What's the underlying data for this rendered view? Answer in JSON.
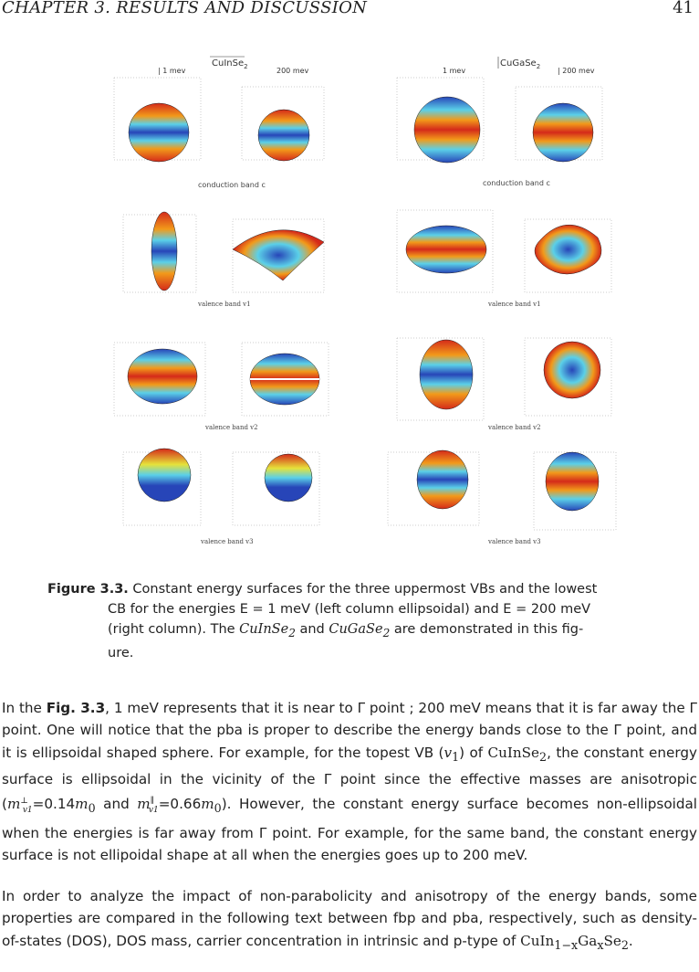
{
  "header": {
    "chapter": "CHAPTER 3.  RESULTS AND DISCUSSION",
    "page_number": "41"
  },
  "figure": {
    "left_title": "CuInSe",
    "left_title_sub": "2",
    "right_title": "CuGaSe",
    "right_title_sub": "2",
    "energy_low": "1 mev",
    "energy_high": "200 mev",
    "row_labels": [
      "conduction band c",
      "valence band v1",
      "valence band v2",
      "valence band v3"
    ],
    "colors": {
      "red": "#d42a1a",
      "orange": "#f29a1a",
      "yellow": "#e6e23a",
      "cyan": "#5bd0e8",
      "blue": "#2745b8"
    }
  },
  "caption": {
    "label": "Figure 3.3.",
    "line1": " Constant energy surfaces for the three uppermost VBs and the lowest",
    "line2": "CB for the energies E = 1 meV (left column ellipsoidal) and E = 200 meV",
    "line3a": "(right column). The ",
    "m1": "CuInSe",
    "m1sub": "2",
    "line3b": " and ",
    "m2": "CuGaSe",
    "m2sub": "2",
    "line3c": " are demonstrated in this fig-",
    "line4": "ure."
  },
  "paragraph1": {
    "t1": "In the ",
    "figref": "Fig. 3.3",
    "t2": ", 1 meV represents that it is near to Γ point ; 200 meV means that it is far away the Γ point.  One will notice that the pba is proper to describe the energy bands close to the Γ point, and it is ellipsoidal shaped sphere. For example, for the topest VB (",
    "v1": "v",
    "v1sub": "1",
    "t3": ") of ",
    "cis": "CuInSe",
    "cissub": "2",
    "t4": ", the constant energy surface is ellipsoidal in the vicinity of the Γ point since the effective masses are anisotropic (",
    "mperp": "m",
    "mperp_sup": "⊥",
    "mperp_sub": "v1",
    "t5": "=0.14",
    "m0a": "m",
    "m0a_sub": "0",
    "t6": " and ",
    "mpar": "m",
    "mpar_sup": "∥",
    "mpar_sub": "v1",
    "t7": "=0.66",
    "m0b": "m",
    "m0b_sub": "0",
    "t8": ").  However, the constant energy surface becomes non-ellipsoidal when the energies is far away from Γ point.  For example, for the same band, the constant energy surface is not ellipoidal shape at all when the energies goes up to 200 meV."
  },
  "paragraph2": {
    "t1": "In order to analyze the impact of non-parabolicity and anisotropy of the energy bands, some properties are compared in the following text between fbp and pba, respectively, such as density-of-states (DOS), DOS mass, carrier concentration in intrinsic and p-type of ",
    "cigs": "CuIn",
    "cigs_sub1": "1−x",
    "cigs2": "Ga",
    "cigs_sub2": "x",
    "cigs3": "Se",
    "cigs_sub3": "2",
    "t2": "."
  }
}
